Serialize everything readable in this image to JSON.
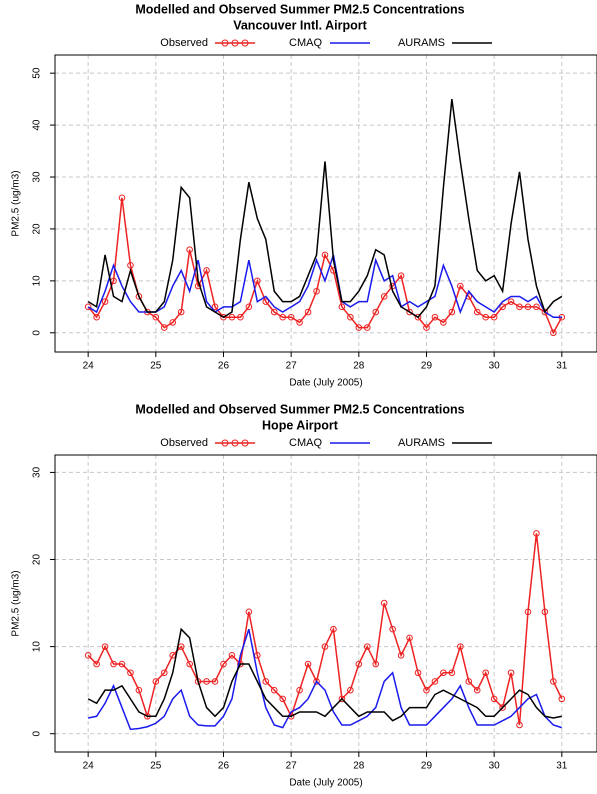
{
  "chart_data": [
    {
      "type": "line",
      "title": "Modelled and Observed Summer PM2.5 Concentrations",
      "subtitle": "Vancouver Intl. Airport",
      "xlabel": "Date (July 2005)",
      "ylabel": "PM2.5 (ug/m3)",
      "xlim": [
        23.51,
        31.52
      ],
      "ylim": [
        -3.7,
        53.5
      ],
      "xticks": [
        24,
        25,
        26,
        27,
        28,
        29,
        30,
        31
      ],
      "yticks": [
        0,
        10,
        20,
        30,
        40,
        50
      ],
      "grid": true,
      "x": [
        24,
        24.125,
        24.25,
        24.375,
        24.5,
        24.625,
        24.75,
        24.875,
        25,
        25.125,
        25.25,
        25.375,
        25.5,
        25.625,
        25.75,
        25.875,
        26,
        26.125,
        26.25,
        26.375,
        26.5,
        26.625,
        26.75,
        26.875,
        27,
        27.125,
        27.25,
        27.375,
        27.5,
        27.625,
        27.75,
        27.875,
        28,
        28.125,
        28.25,
        28.375,
        28.5,
        28.625,
        28.75,
        28.875,
        29,
        29.125,
        29.25,
        29.375,
        29.5,
        29.625,
        29.75,
        29.875,
        30,
        30.125,
        30.25,
        30.375,
        30.5,
        30.625,
        30.75,
        30.875,
        31
      ],
      "series": [
        {
          "name": "Observed",
          "color": "#ee2222",
          "marker": "circle",
          "values": [
            5,
            3,
            6,
            10,
            26,
            13,
            7,
            4,
            3,
            1,
            2,
            4,
            16,
            9,
            12,
            5,
            3,
            3,
            3,
            5,
            10,
            6,
            4,
            3,
            3,
            2,
            4,
            8,
            15,
            12,
            5,
            3,
            1,
            1,
            4,
            7,
            9,
            11,
            4,
            3,
            1,
            3,
            2,
            4,
            9,
            7,
            4,
            3,
            3,
            5,
            6,
            5,
            5,
            5,
            4,
            0,
            3
          ]
        },
        {
          "name": "CMAQ",
          "color": "#1a1aee",
          "values": [
            5,
            4,
            8,
            13,
            9,
            6,
            4,
            4,
            4,
            5,
            9,
            12,
            8,
            14,
            6,
            4,
            5,
            5,
            6,
            14,
            6,
            7,
            5,
            4,
            5,
            6,
            9,
            14,
            10,
            15,
            6,
            5,
            6,
            6,
            14,
            10,
            11,
            5,
            6,
            5,
            6,
            7,
            13,
            9,
            4,
            8,
            6,
            5,
            4,
            6,
            7,
            7,
            6,
            7,
            4,
            3,
            3
          ]
        },
        {
          "name": "AURAMS",
          "color": "#000000",
          "values": [
            6,
            5,
            15,
            7,
            6,
            12,
            7,
            4,
            4,
            6,
            14,
            28,
            26,
            10,
            5,
            4,
            3,
            4,
            18,
            29,
            22,
            18,
            8,
            6,
            6,
            7,
            11,
            15,
            33,
            14,
            6,
            6,
            8,
            11,
            16,
            15,
            8,
            5,
            4,
            3,
            5,
            9,
            28,
            45,
            33,
            22,
            12,
            10,
            11,
            8,
            21,
            31,
            18,
            9,
            4,
            6,
            7
          ]
        }
      ]
    },
    {
      "type": "line",
      "title": "Modelled and Observed Summer PM2.5 Concentrations",
      "subtitle": "Hope Airport",
      "xlabel": "Date (July 2005)",
      "ylabel": "PM2.5 (ug/m3)",
      "xlim": [
        23.51,
        31.52
      ],
      "ylim": [
        -2.1,
        32
      ],
      "xticks": [
        24,
        25,
        26,
        27,
        28,
        29,
        30,
        31
      ],
      "yticks": [
        0,
        10,
        20,
        30
      ],
      "grid": true,
      "x": [
        24,
        24.125,
        24.25,
        24.375,
        24.5,
        24.625,
        24.75,
        24.875,
        25,
        25.125,
        25.25,
        25.375,
        25.5,
        25.625,
        25.75,
        25.875,
        26,
        26.125,
        26.25,
        26.375,
        26.5,
        26.625,
        26.75,
        26.875,
        27,
        27.125,
        27.25,
        27.375,
        27.5,
        27.625,
        27.75,
        27.875,
        28,
        28.125,
        28.25,
        28.375,
        28.5,
        28.625,
        28.75,
        28.875,
        29,
        29.125,
        29.25,
        29.375,
        29.5,
        29.625,
        29.75,
        29.875,
        30,
        30.125,
        30.25,
        30.375,
        30.5,
        30.625,
        30.75,
        30.875,
        31
      ],
      "series": [
        {
          "name": "Observed",
          "color": "#ee2222",
          "marker": "circle",
          "values": [
            9,
            8,
            10,
            8,
            8,
            7,
            5,
            2,
            6,
            7,
            9,
            10,
            8,
            6,
            6,
            6,
            8,
            9,
            8,
            14,
            9,
            6,
            5,
            4,
            2,
            5,
            8,
            6,
            10,
            12,
            4,
            5,
            8,
            10,
            8,
            15,
            12,
            9,
            11,
            7,
            5,
            6,
            7,
            7,
            10,
            6,
            5,
            7,
            4,
            3,
            7,
            1,
            14,
            23,
            14,
            6,
            4
          ]
        },
        {
          "name": "CMAQ",
          "color": "#1a1aee",
          "values": [
            1.8,
            2,
            3.5,
            5.5,
            3,
            0.5,
            0.6,
            0.8,
            1.2,
            2,
            4,
            5,
            2,
            1,
            0.9,
            0.9,
            2,
            4,
            9,
            12,
            7,
            3,
            1,
            0.7,
            2.5,
            3,
            4,
            6,
            5,
            2.5,
            1,
            1,
            1.5,
            2,
            3,
            6,
            7,
            3,
            1,
            1,
            1,
            2,
            3,
            4,
            5.5,
            3,
            1,
            1,
            1,
            1.5,
            2,
            3,
            4,
            4.5,
            2,
            1,
            0.7
          ]
        },
        {
          "name": "AURAMS",
          "color": "#000000",
          "values": [
            4,
            3.5,
            5,
            5,
            5.5,
            4,
            2.5,
            2,
            2,
            4,
            7,
            12,
            11,
            6,
            3,
            2,
            3,
            6,
            8,
            8,
            6,
            4,
            3,
            2,
            2,
            2.5,
            2.5,
            2.5,
            2,
            3,
            4,
            3,
            2,
            2.5,
            2.5,
            2.5,
            1.5,
            2,
            3,
            3,
            3,
            4.5,
            5,
            4.5,
            4,
            3.5,
            3,
            2,
            2,
            3,
            4,
            5,
            4.5,
            3,
            2,
            1.8,
            2
          ]
        }
      ]
    }
  ]
}
